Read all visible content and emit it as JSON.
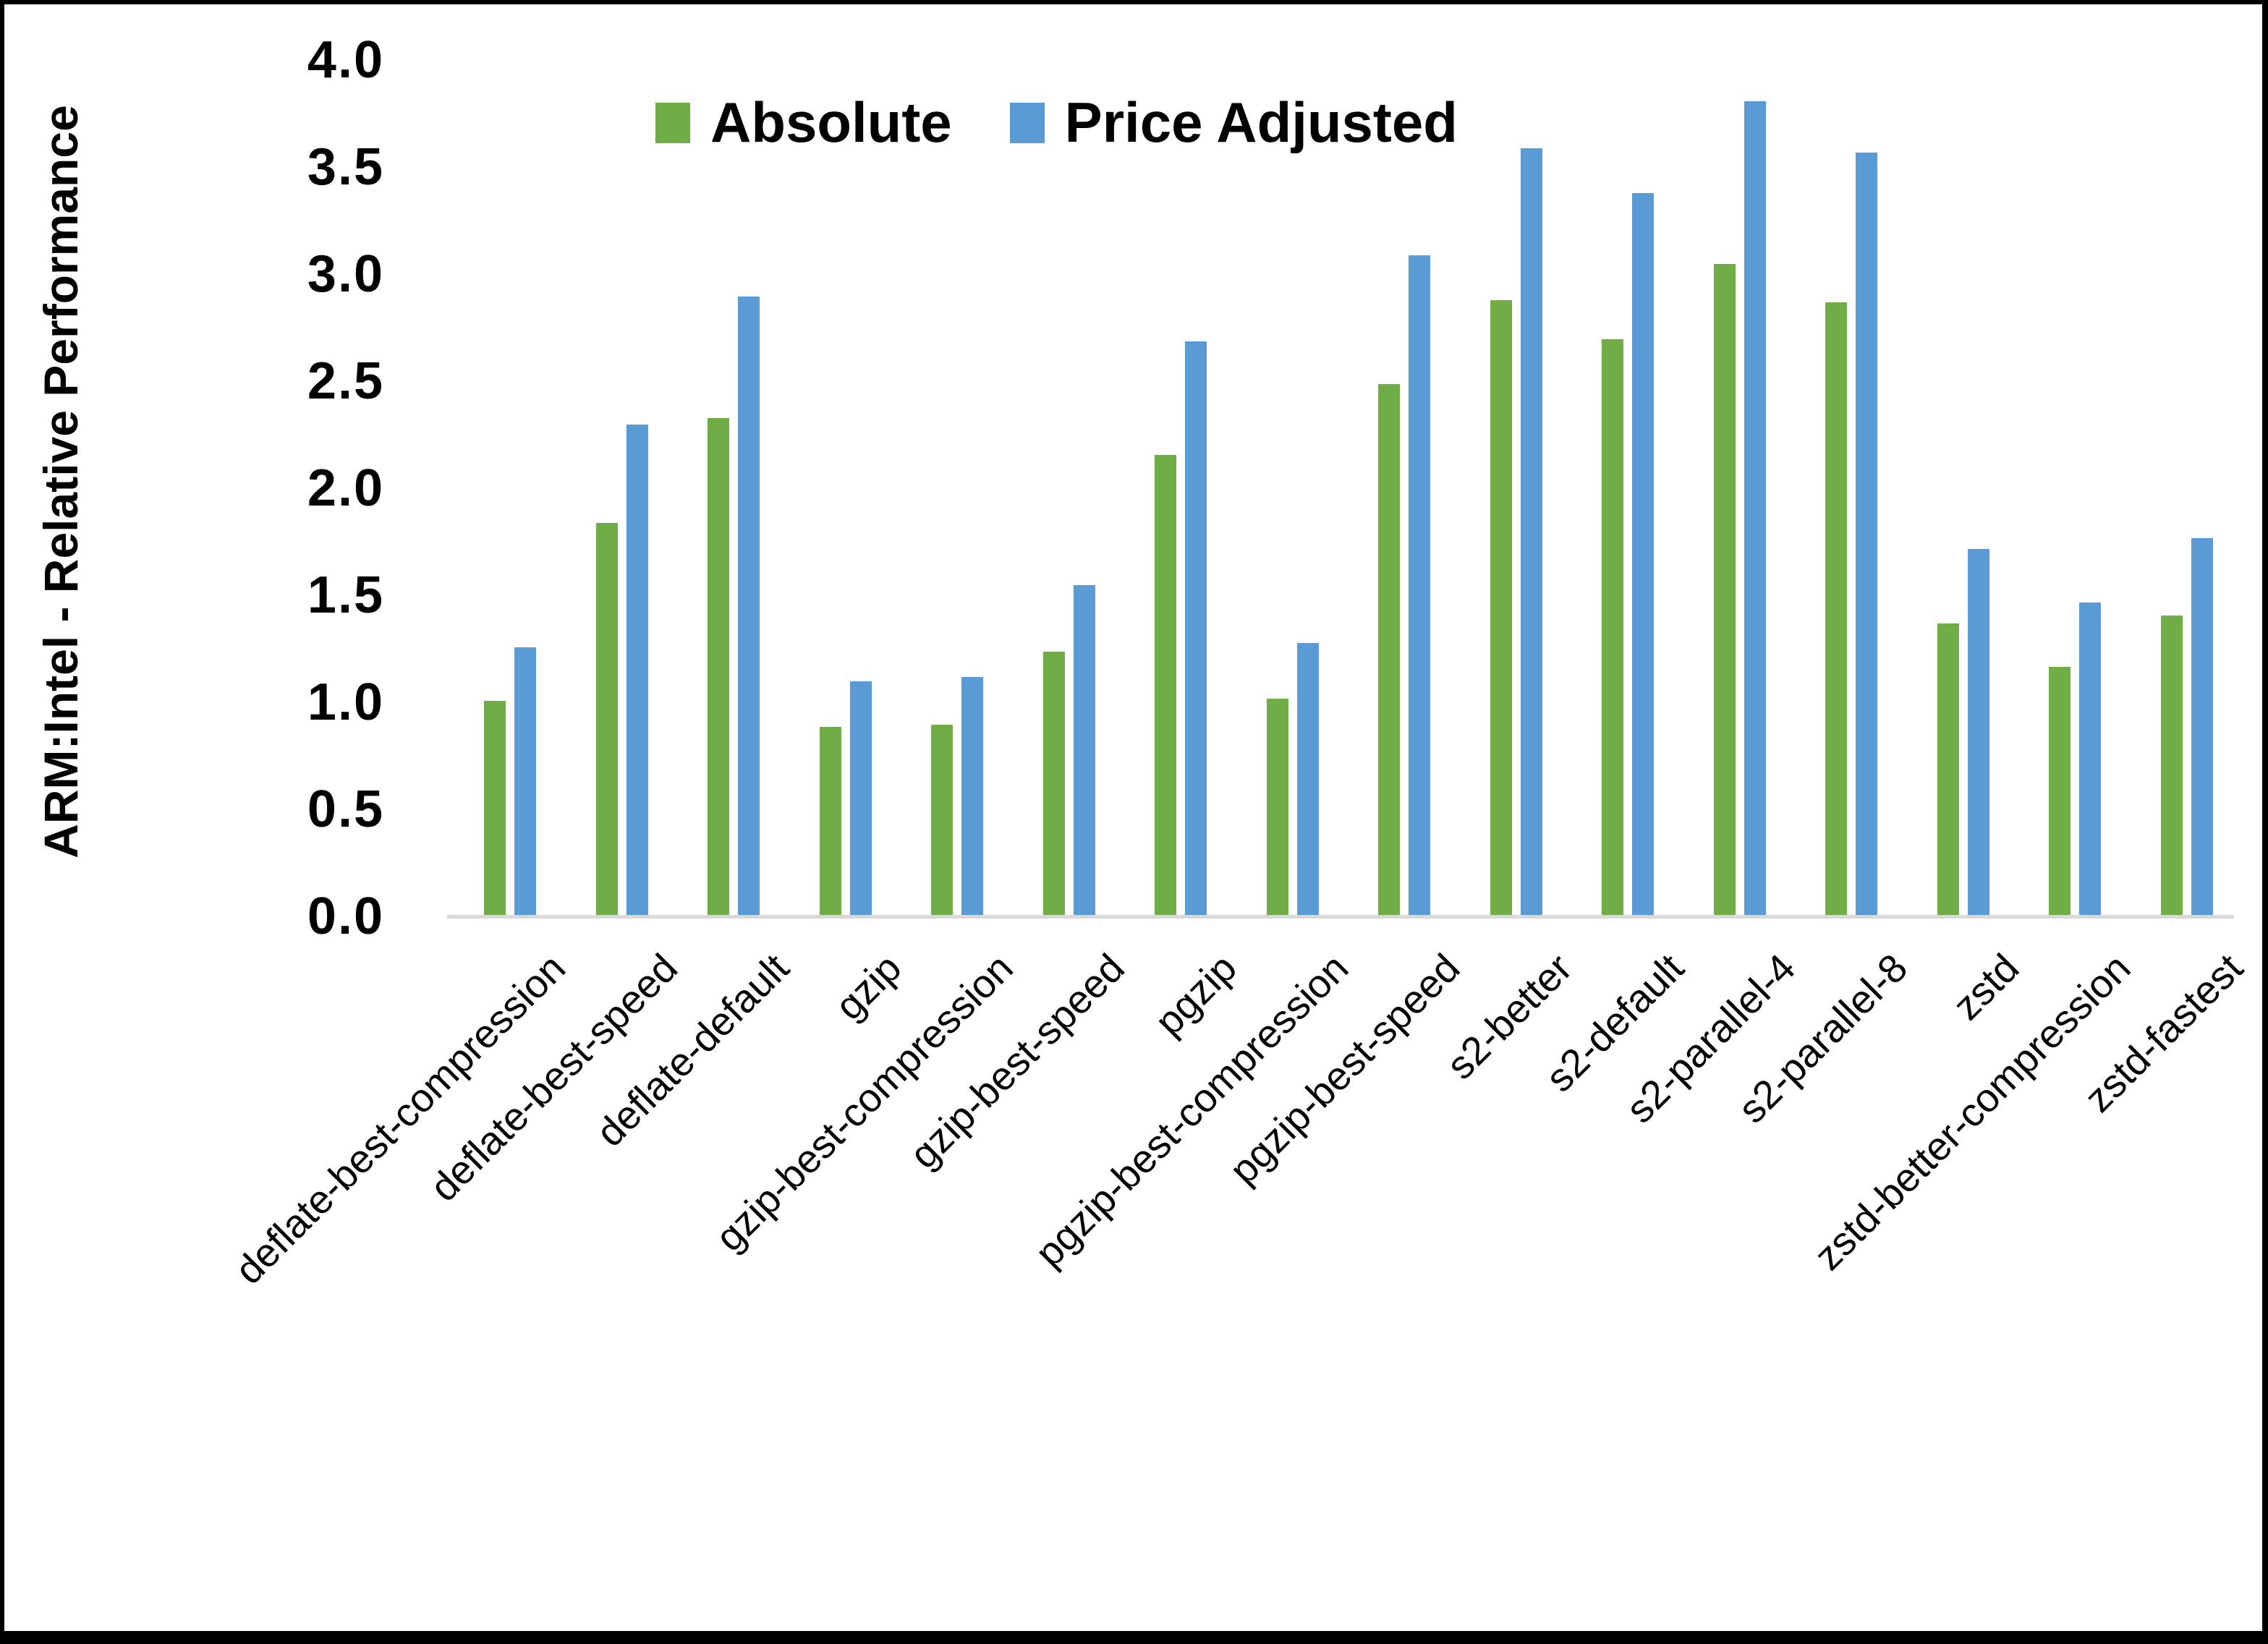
{
  "chart_data": {
    "type": "bar",
    "title": "",
    "xlabel": "",
    "ylabel": "ARM:Intel - Relative Performance",
    "ylim": [
      0.0,
      4.0
    ],
    "ytick_step": 0.5,
    "ytick_labels": [
      "0.0",
      "0.5",
      "1.0",
      "1.5",
      "2.0",
      "2.5",
      "3.0",
      "3.5",
      "4.0"
    ],
    "grid": false,
    "legend_position": "top-center",
    "categories": [
      "deflate-best-compression",
      "deflate-best-speed",
      "deflate-default",
      "gzip",
      "gzip-best-compression",
      "gzip-best-speed",
      "pgzip",
      "pgzip-best-compression",
      "pgzip-best-speed",
      "s2-better",
      "s2-default",
      "s2-parallel-4",
      "s2-parallel-8",
      "zstd",
      "zstd-better-compression",
      "zstd-fastest"
    ],
    "series": [
      {
        "name": "Absolute",
        "color": "#70AD47",
        "values": [
          1.0,
          1.83,
          2.32,
          0.88,
          0.89,
          1.23,
          2.15,
          1.01,
          2.48,
          2.87,
          2.69,
          3.04,
          2.86,
          1.36,
          1.16,
          1.4
        ]
      },
      {
        "name": "Price Adjusted",
        "color": "#5B9BD5",
        "values": [
          1.25,
          2.29,
          2.89,
          1.09,
          1.11,
          1.54,
          2.68,
          1.27,
          3.08,
          3.58,
          3.37,
          3.8,
          3.56,
          1.71,
          1.46,
          1.76
        ]
      }
    ],
    "axis_line_color": "#D9D9D9",
    "text_color": "#000000",
    "background_color": "#FFFFFF",
    "frame_color": "#000000"
  },
  "legend": {
    "items": [
      {
        "label": "Absolute",
        "color": "#70AD47"
      },
      {
        "label": "Price Adjusted",
        "color": "#5B9BD5"
      }
    ]
  }
}
